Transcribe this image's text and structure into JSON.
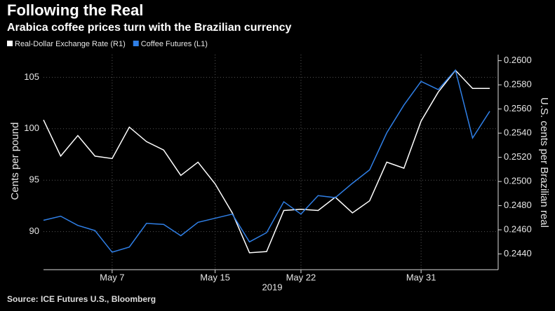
{
  "chart_data": {
    "type": "line",
    "title": "Following the Real",
    "subtitle": "Arabica coffee prices turn with the Brazilian currency",
    "source": "Source: ICE Futures U.S., Bloomberg",
    "x_label": "2019",
    "ylabel": "Cents per pound",
    "y2label": "U.S. cents per Brazilian real",
    "categories": [
      null,
      null,
      null,
      null,
      "May 7",
      null,
      null,
      null,
      null,
      null,
      "May 15",
      null,
      null,
      null,
      null,
      "May 22",
      null,
      null,
      null,
      null,
      null,
      null,
      "May 31",
      null,
      null,
      null,
      null
    ],
    "series": [
      {
        "name": "Real-Dollar Exchange Rate (R1)",
        "color": "#ffffff",
        "axis": "y2",
        "values": [
          0.2551,
          0.2521,
          0.2538,
          0.2521,
          0.2519,
          0.2545,
          0.2533,
          0.2526,
          0.2505,
          0.2516,
          0.2498,
          0.2474,
          0.2441,
          0.2442,
          0.2476,
          0.2477,
          0.2476,
          0.2487,
          0.2474,
          0.2484,
          0.2516,
          0.2511,
          0.255,
          0.2574,
          0.2592,
          0.2577,
          0.2577
        ]
      },
      {
        "name": "Coffee Futures (L1)",
        "color": "#2f7fe6",
        "values": [
          91.1,
          91.5,
          90.6,
          90.1,
          88.0,
          88.5,
          90.8,
          90.7,
          89.6,
          90.9,
          91.3,
          91.7,
          89.0,
          89.9,
          92.9,
          91.7,
          93.5,
          93.3,
          94.7,
          96.0,
          99.6,
          102.3,
          104.6,
          103.8,
          105.7,
          99.1,
          101.7
        ]
      }
    ],
    "ylim": [
      86.3,
      107.2
    ],
    "yticks": [
      90,
      95,
      100,
      105
    ],
    "y2lim": [
      0.2427,
      0.2605
    ],
    "y2ticks": [
      {
        "value": 0.244,
        "label": "0.2440"
      },
      {
        "value": 0.246,
        "label": "0.2460"
      },
      {
        "value": 0.248,
        "label": "0.2480"
      },
      {
        "value": 0.25,
        "label": "0.2500"
      },
      {
        "value": 0.252,
        "label": "0.2520"
      },
      {
        "value": 0.254,
        "label": "0.2540"
      },
      {
        "value": 0.256,
        "label": "0.2560"
      },
      {
        "value": 0.258,
        "label": "0.2580"
      },
      {
        "value": 0.26,
        "label": "0.2600"
      }
    ],
    "grid": true
  }
}
